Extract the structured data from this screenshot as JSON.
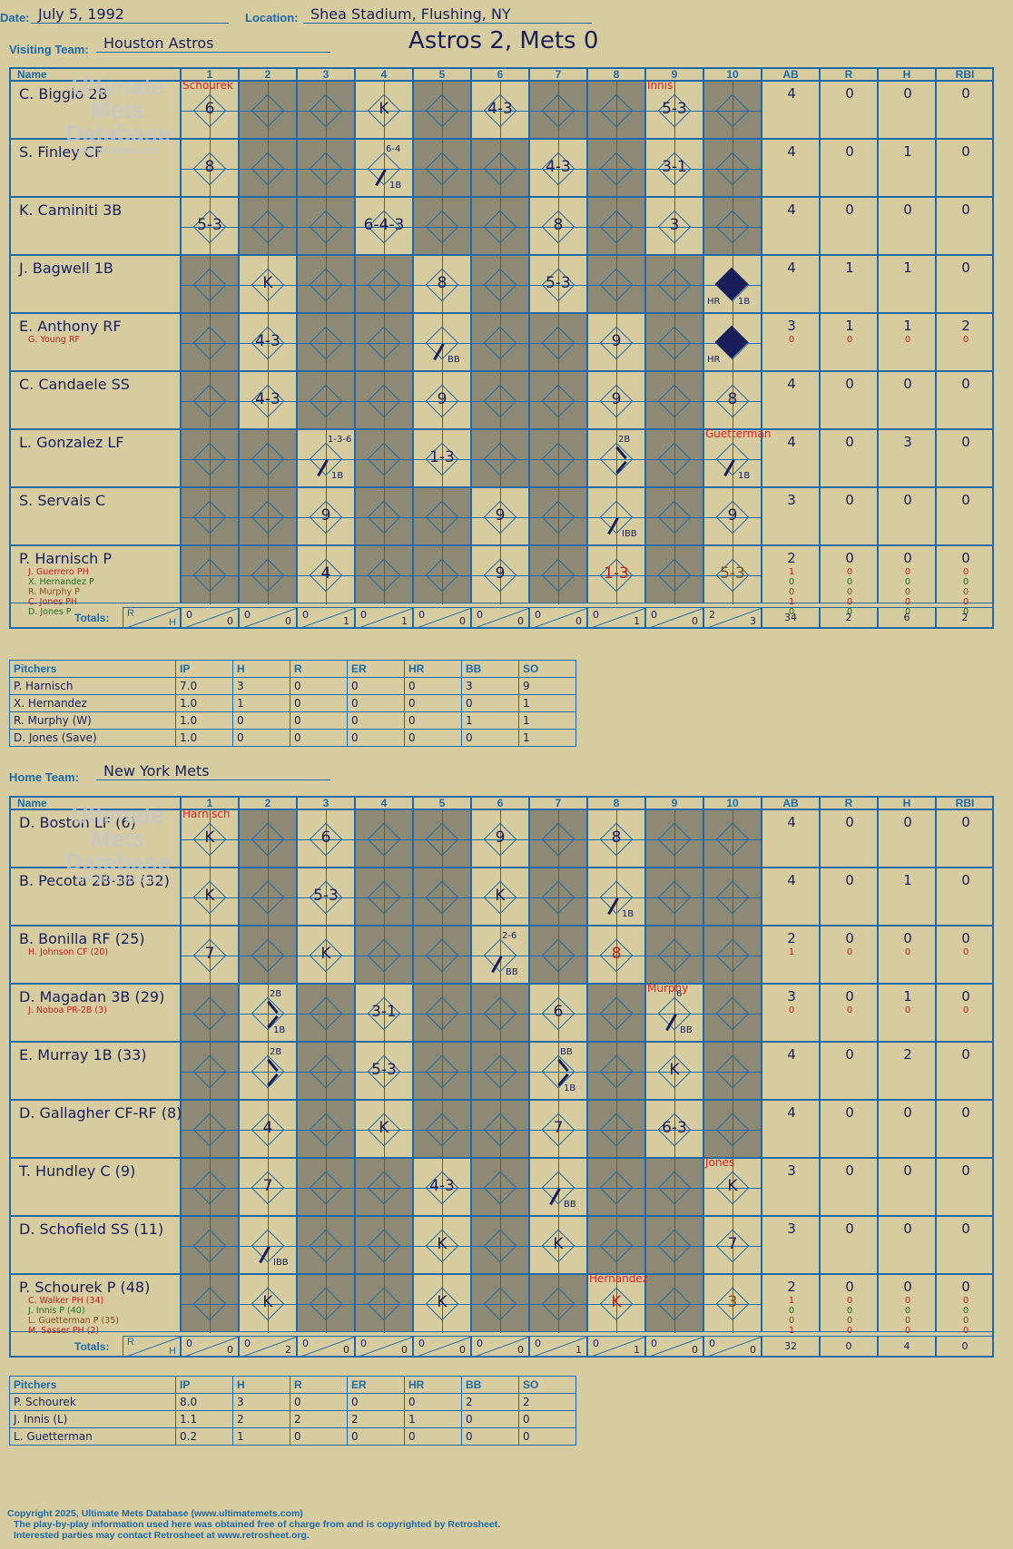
{
  "header": {
    "date_label": "Date:",
    "date": "July 5, 1992",
    "location_label": "Location:",
    "location": "Shea Stadium, Flushing, NY",
    "visiting_label": "Visiting Team:",
    "visiting_team": "Houston Astros",
    "home_label": "Home Team:",
    "home_team": "New York Mets",
    "title": "Astros 2, Mets 0"
  },
  "columns": {
    "name": "Name",
    "innings": [
      "1",
      "2",
      "3",
      "4",
      "5",
      "6",
      "7",
      "8",
      "9",
      "10"
    ],
    "stats": [
      "AB",
      "R",
      "H",
      "RBI"
    ],
    "totals_label": "Totals:",
    "r": "R",
    "h": "H"
  },
  "watermark": {
    "line1": "Ultimate",
    "line2": "Mets",
    "line3": "Database",
    "site": "ultimatemets.com"
  },
  "visitors": {
    "players": [
      {
        "name": "C. Biggio 2B",
        "subs": [],
        "stats": [
          "4",
          "0",
          "0",
          "0"
        ],
        "substats": []
      },
      {
        "name": "S. Finley CF",
        "subs": [],
        "stats": [
          "4",
          "0",
          "1",
          "0"
        ],
        "substats": []
      },
      {
        "name": "K. Caminiti 3B",
        "subs": [],
        "stats": [
          "4",
          "0",
          "0",
          "0"
        ],
        "substats": []
      },
      {
        "name": "J. Bagwell 1B",
        "subs": [],
        "stats": [
          "4",
          "1",
          "1",
          "0"
        ],
        "substats": []
      },
      {
        "name": "E. Anthony RF",
        "subs": [
          {
            "t": "G. Young RF",
            "c": "#c02020"
          }
        ],
        "stats": [
          "3",
          "1",
          "1",
          "2"
        ],
        "substats": [
          [
            "0",
            "0",
            "0",
            "0"
          ]
        ]
      },
      {
        "name": "C. Candaele SS",
        "subs": [],
        "stats": [
          "4",
          "0",
          "0",
          "0"
        ],
        "substats": []
      },
      {
        "name": "L. Gonzalez LF",
        "subs": [],
        "stats": [
          "4",
          "0",
          "3",
          "0"
        ],
        "substats": []
      },
      {
        "name": "S. Servais C",
        "subs": [],
        "stats": [
          "3",
          "0",
          "0",
          "0"
        ],
        "substats": []
      },
      {
        "name": "P. Harnisch P",
        "subs": [
          {
            "t": "J. Guerrero PH",
            "c": "#c02020"
          },
          {
            "t": "X. Hernandez P",
            "c": "#207020"
          },
          {
            "t": "R. Murphy P",
            "c": "#805020"
          },
          {
            "t": "C. Jones PH",
            "c": "#c02020"
          },
          {
            "t": "D. Jones P",
            "c": "#207020"
          }
        ],
        "stats": [
          "2",
          "0",
          "0",
          "0"
        ],
        "substats": [
          [
            "1",
            "0",
            "0",
            "0"
          ],
          [
            "0",
            "0",
            "0",
            "0"
          ],
          [
            "0",
            "0",
            "0",
            "0"
          ],
          [
            "1",
            "0",
            "0",
            "0"
          ],
          [
            "0",
            "0",
            "0",
            "0"
          ]
        ]
      }
    ],
    "active": [
      [
        1,
        0,
        0,
        1,
        0,
        1,
        0,
        0,
        1,
        0
      ],
      [
        1,
        0,
        0,
        1,
        0,
        0,
        1,
        0,
        1,
        0
      ],
      [
        1,
        0,
        0,
        1,
        0,
        0,
        1,
        0,
        1,
        0
      ],
      [
        0,
        1,
        0,
        0,
        1,
        0,
        1,
        0,
        0,
        1
      ],
      [
        0,
        1,
        0,
        0,
        1,
        0,
        0,
        1,
        0,
        1
      ],
      [
        0,
        1,
        0,
        0,
        1,
        0,
        0,
        1,
        0,
        1
      ],
      [
        0,
        0,
        1,
        0,
        1,
        0,
        0,
        1,
        0,
        1
      ],
      [
        0,
        0,
        1,
        0,
        0,
        1,
        0,
        1,
        0,
        1
      ],
      [
        0,
        0,
        1,
        0,
        0,
        1,
        0,
        1,
        0,
        1
      ]
    ],
    "plays": [
      [
        {
          "i": 0,
          "t": "6",
          "red": "Schourek"
        },
        {
          "i": 3,
          "t": "K"
        },
        {
          "i": 5,
          "t": "4-3"
        },
        {
          "i": 8,
          "t": "5-3",
          "red": "Innis"
        }
      ],
      [
        {
          "i": 0,
          "t": "8"
        },
        {
          "i": 3,
          "t": "",
          "note": "6-4",
          "br": "1B",
          "seg": 1
        },
        {
          "i": 6,
          "t": "4-3"
        },
        {
          "i": 8,
          "t": "3-1"
        }
      ],
      [
        {
          "i": 0,
          "t": "5-3"
        },
        {
          "i": 3,
          "t": "6-4-3"
        },
        {
          "i": 6,
          "t": "8"
        },
        {
          "i": 8,
          "t": "3"
        }
      ],
      [
        {
          "i": 1,
          "t": "K"
        },
        {
          "i": 4,
          "t": "8"
        },
        {
          "i": 6,
          "t": "5-3"
        },
        {
          "i": 9,
          "t": "",
          "fill": 1,
          "bl": "HR",
          "br": "1B"
        }
      ],
      [
        {
          "i": 1,
          "t": "4-3"
        },
        {
          "i": 4,
          "t": "",
          "br": "BB",
          "seg": 1
        },
        {
          "i": 7,
          "t": "9"
        },
        {
          "i": 9,
          "t": "",
          "fill": 1,
          "bl": "HR"
        }
      ],
      [
        {
          "i": 1,
          "t": "4-3"
        },
        {
          "i": 4,
          "t": "9"
        },
        {
          "i": 7,
          "t": "9"
        },
        {
          "i": 9,
          "t": "8"
        }
      ],
      [
        {
          "i": 2,
          "t": "",
          "note": "1-3-6",
          "br": "1B",
          "seg": 1
        },
        {
          "i": 4,
          "t": "1-3"
        },
        {
          "i": 7,
          "t": "",
          "note": "2B",
          "br": "",
          "seg": 2
        },
        {
          "i": 9,
          "t": "",
          "br": "1B",
          "seg": 1,
          "red": "Guetterman"
        }
      ],
      [
        {
          "i": 2,
          "t": "9"
        },
        {
          "i": 5,
          "t": "9"
        },
        {
          "i": 7,
          "t": "",
          "br": "IBB",
          "seg": 1
        },
        {
          "i": 9,
          "t": "9"
        }
      ],
      [
        {
          "i": 2,
          "t": "4"
        },
        {
          "i": 5,
          "t": "9"
        },
        {
          "i": 7,
          "t": "1-3",
          "color": "#c02020"
        },
        {
          "i": 9,
          "t": "5-3",
          "color": "#805020"
        }
      ]
    ],
    "totals": [
      [
        "0",
        "0"
      ],
      [
        "0",
        "0"
      ],
      [
        "0",
        "1"
      ],
      [
        "0",
        "1"
      ],
      [
        "0",
        "0"
      ],
      [
        "0",
        "0"
      ],
      [
        "0",
        "0"
      ],
      [
        "0",
        "1"
      ],
      [
        "0",
        "0"
      ],
      [
        "2",
        "3"
      ]
    ],
    "stat_totals": [
      "34",
      "2",
      "6",
      "2"
    ],
    "pitchers": {
      "header": [
        "Pitchers",
        "IP",
        "H",
        "R",
        "ER",
        "HR",
        "BB",
        "SO"
      ],
      "rows": [
        [
          "P. Harnisch",
          "7.0",
          "3",
          "0",
          "0",
          "0",
          "3",
          "9"
        ],
        [
          "X. Hernandez",
          "1.0",
          "1",
          "0",
          "0",
          "0",
          "0",
          "1"
        ],
        [
          "R. Murphy (W)",
          "1.0",
          "0",
          "0",
          "0",
          "0",
          "1",
          "1"
        ],
        [
          "D. Jones (Save)",
          "1.0",
          "0",
          "0",
          "0",
          "0",
          "0",
          "1"
        ]
      ]
    }
  },
  "home": {
    "players": [
      {
        "name": "D. Boston LF (6)",
        "subs": [],
        "stats": [
          "4",
          "0",
          "0",
          "0"
        ],
        "substats": []
      },
      {
        "name": "B. Pecota 2B-3B (32)",
        "subs": [],
        "stats": [
          "4",
          "0",
          "1",
          "0"
        ],
        "substats": []
      },
      {
        "name": "B. Bonilla RF (25)",
        "subs": [
          {
            "t": "H. Johnson CF (20)",
            "c": "#c02020"
          }
        ],
        "stats": [
          "2",
          "0",
          "0",
          "0"
        ],
        "substats": [
          [
            "1",
            "0",
            "0",
            "0"
          ]
        ]
      },
      {
        "name": "D. Magadan 3B (29)",
        "subs": [
          {
            "t": "J. Noboa PR-2B (3)",
            "c": "#c02020"
          }
        ],
        "stats": [
          "3",
          "0",
          "1",
          "0"
        ],
        "substats": [
          [
            "0",
            "0",
            "0",
            "0"
          ]
        ]
      },
      {
        "name": "E. Murray 1B (33)",
        "subs": [],
        "stats": [
          "4",
          "0",
          "2",
          "0"
        ],
        "substats": []
      },
      {
        "name": "D. Gallagher CF-RF (8)",
        "subs": [],
        "stats": [
          "4",
          "0",
          "0",
          "0"
        ],
        "substats": []
      },
      {
        "name": "T. Hundley C (9)",
        "subs": [],
        "stats": [
          "3",
          "0",
          "0",
          "0"
        ],
        "substats": []
      },
      {
        "name": "D. Schofield SS (11)",
        "subs": [],
        "stats": [
          "3",
          "0",
          "0",
          "0"
        ],
        "substats": []
      },
      {
        "name": "P. Schourek P (48)",
        "subs": [
          {
            "t": "C. Walker PH (34)",
            "c": "#c02020"
          },
          {
            "t": "J. Innis P (40)",
            "c": "#207020"
          },
          {
            "t": "L. Guetterman P (35)",
            "c": "#805020"
          },
          {
            "t": "M. Sasser PH (2)",
            "c": "#c02020"
          }
        ],
        "stats": [
          "2",
          "0",
          "0",
          "0"
        ],
        "substats": [
          [
            "1",
            "0",
            "0",
            "0"
          ],
          [
            "0",
            "0",
            "0",
            "0"
          ],
          [
            "0",
            "0",
            "0",
            "0"
          ],
          [
            "1",
            "0",
            "0",
            "0"
          ]
        ]
      }
    ],
    "active": [
      [
        1,
        0,
        1,
        0,
        0,
        1,
        0,
        1,
        0,
        0
      ],
      [
        1,
        0,
        1,
        0,
        0,
        1,
        0,
        1,
        0,
        0
      ],
      [
        1,
        0,
        1,
        0,
        0,
        1,
        0,
        1,
        0,
        0
      ],
      [
        0,
        1,
        0,
        1,
        0,
        0,
        1,
        0,
        1,
        0
      ],
      [
        0,
        1,
        0,
        1,
        0,
        0,
        1,
        0,
        1,
        0
      ],
      [
        0,
        1,
        0,
        1,
        0,
        0,
        1,
        0,
        1,
        0
      ],
      [
        0,
        1,
        0,
        0,
        1,
        0,
        1,
        0,
        0,
        1
      ],
      [
        0,
        1,
        0,
        0,
        1,
        0,
        1,
        0,
        0,
        1
      ],
      [
        0,
        1,
        0,
        0,
        1,
        0,
        0,
        1,
        0,
        1
      ]
    ],
    "plays": [
      [
        {
          "i": 0,
          "t": "K",
          "red": "Harnisch"
        },
        {
          "i": 2,
          "t": "6"
        },
        {
          "i": 5,
          "t": "9"
        },
        {
          "i": 7,
          "t": "8"
        }
      ],
      [
        {
          "i": 0,
          "t": "K"
        },
        {
          "i": 2,
          "t": "5-3"
        },
        {
          "i": 5,
          "t": "K"
        },
        {
          "i": 7,
          "t": "",
          "br": "1B",
          "seg": 1
        }
      ],
      [
        {
          "i": 0,
          "t": "7"
        },
        {
          "i": 2,
          "t": "K"
        },
        {
          "i": 5,
          "t": "",
          "note": "2-6",
          "br": "BB",
          "seg": 1
        },
        {
          "i": 7,
          "t": "8",
          "color": "#c02020"
        }
      ],
      [
        {
          "i": 1,
          "t": "",
          "note": "2B",
          "br": "1B",
          "seg": 2
        },
        {
          "i": 3,
          "t": "3-1"
        },
        {
          "i": 6,
          "t": "6"
        },
        {
          "i": 8,
          "t": "",
          "note": "6",
          "br": "BB",
          "seg": 1,
          "red": "Murphy"
        }
      ],
      [
        {
          "i": 1,
          "t": "",
          "note": "2B",
          "br": "",
          "seg": 2
        },
        {
          "i": 3,
          "t": "5-3"
        },
        {
          "i": 6,
          "t": "",
          "note": "BB",
          "br": "1B",
          "seg": 2
        },
        {
          "i": 8,
          "t": "K"
        }
      ],
      [
        {
          "i": 1,
          "t": "4"
        },
        {
          "i": 3,
          "t": "K"
        },
        {
          "i": 6,
          "t": "7"
        },
        {
          "i": 8,
          "t": "6-3"
        }
      ],
      [
        {
          "i": 1,
          "t": "7"
        },
        {
          "i": 4,
          "t": "4-3"
        },
        {
          "i": 6,
          "t": "",
          "br": "BB",
          "seg": 1
        },
        {
          "i": 9,
          "t": "K",
          "red": "Jones"
        }
      ],
      [
        {
          "i": 1,
          "t": "",
          "br": "IBB",
          "seg": 1
        },
        {
          "i": 4,
          "t": "K"
        },
        {
          "i": 6,
          "t": "K"
        },
        {
          "i": 9,
          "t": "7"
        }
      ],
      [
        {
          "i": 1,
          "t": "K"
        },
        {
          "i": 4,
          "t": "K"
        },
        {
          "i": 7,
          "t": "K",
          "color": "#c02020",
          "red": "Hernandez"
        },
        {
          "i": 9,
          "t": "3",
          "color": "#805020"
        }
      ]
    ],
    "totals": [
      [
        "0",
        "0"
      ],
      [
        "0",
        "2"
      ],
      [
        "0",
        "0"
      ],
      [
        "0",
        "0"
      ],
      [
        "0",
        "0"
      ],
      [
        "0",
        "0"
      ],
      [
        "0",
        "1"
      ],
      [
        "0",
        "1"
      ],
      [
        "0",
        "0"
      ],
      [
        "0",
        "0"
      ]
    ],
    "stat_totals": [
      "32",
      "0",
      "4",
      "0"
    ],
    "pitchers": {
      "header": [
        "Pitchers",
        "IP",
        "H",
        "R",
        "ER",
        "HR",
        "BB",
        "SO"
      ],
      "rows": [
        [
          "P. Schourek",
          "8.0",
          "3",
          "0",
          "0",
          "0",
          "2",
          "2"
        ],
        [
          "J. Innis (L)",
          "1.1",
          "2",
          "2",
          "2",
          "1",
          "0",
          "0"
        ],
        [
          "L. Guetterman",
          "0.2",
          "1",
          "0",
          "0",
          "0",
          "0",
          "0"
        ]
      ]
    }
  },
  "footer": {
    "line1": "Copyright 2025, Ultimate Mets Database (www.ultimatemets.com)",
    "line2": "The play-by-play information used here was obtained free of charge from and is copyrighted by Retrosheet.",
    "line3": "Interested parties may contact Retrosheet at www.retrosheet.org."
  }
}
